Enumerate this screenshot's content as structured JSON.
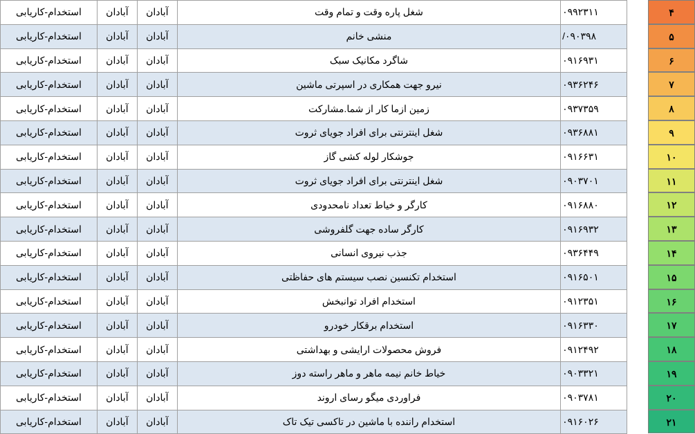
{
  "index_colors": [
    "#f07a3c",
    "#f28e42",
    "#f4a24a",
    "#f6b652",
    "#f8ca5a",
    "#fadc62",
    "#f4e464",
    "#dce666",
    "#c4e468",
    "#ace26a",
    "#94de6c",
    "#7cd86e",
    "#6ad270",
    "#58cc72",
    "#46c674",
    "#3ac076",
    "#32ba78",
    "#2ab47a"
  ],
  "rows": [
    {
      "n": "۴",
      "phone": "۰۹۹۲۳۱۱",
      "title": "شغل پاره وقت و تمام وقت",
      "city1": "آبادان",
      "city2": "آبادان",
      "cat": "استخدام-کاریابی"
    },
    {
      "n": "۵",
      "phone": "۰۹۰۳۹۸/",
      "title": "منشی خانم",
      "city1": "آبادان",
      "city2": "آبادان",
      "cat": "استخدام-کاریابی"
    },
    {
      "n": "۶",
      "phone": "۰۹۱۶۹۳۱",
      "title": "شاگرد مکانیک سبک",
      "city1": "آبادان",
      "city2": "آبادان",
      "cat": "استخدام-کاریابی"
    },
    {
      "n": "۷",
      "phone": "۰۹۳۶۲۴۶",
      "title": "نیرو جهت همکاری در اسپرتی ماشین",
      "city1": "آبادان",
      "city2": "آبادان",
      "cat": "استخدام-کاریابی"
    },
    {
      "n": "۸",
      "phone": "۰۹۳۷۳۵۹",
      "title": "زمین ازما کار از شما.مشارکت",
      "city1": "آبادان",
      "city2": "آبادان",
      "cat": "استخدام-کاریابی"
    },
    {
      "n": "۹",
      "phone": "۰۹۳۶۸۸۱",
      "title": "شغل اینترنتی برای افراد جویای ثروت",
      "city1": "آبادان",
      "city2": "آبادان",
      "cat": "استخدام-کاریابی"
    },
    {
      "n": "۱۰",
      "phone": "۰۹۱۶۶۳۱",
      "title": "جوشکار لوله کشی گاز",
      "city1": "آبادان",
      "city2": "آبادان",
      "cat": "استخدام-کاریابی"
    },
    {
      "n": "۱۱",
      "phone": "۰۹۰۳۷۰۱",
      "title": "شغل اینترنتی برای افراد جویای ثروت",
      "city1": "آبادان",
      "city2": "آبادان",
      "cat": "استخدام-کاریابی"
    },
    {
      "n": "۱۲",
      "phone": "۰۹۱۶۸۸۰",
      "title": "کارگر و خیاط تعداد نامحدودی",
      "city1": "آبادان",
      "city2": "آبادان",
      "cat": "استخدام-کاریابی"
    },
    {
      "n": "۱۳",
      "phone": "۰۹۱۶۹۳۲",
      "title": "کارگر ساده جهت گلفروشی",
      "city1": "آبادان",
      "city2": "آبادان",
      "cat": "استخدام-کاریابی"
    },
    {
      "n": "۱۴",
      "phone": "۰۹۳۶۴۴۹",
      "title": "جذب نیروی انسانی",
      "city1": "آبادان",
      "city2": "آبادان",
      "cat": "استخدام-کاریابی"
    },
    {
      "n": "۱۵",
      "phone": "۰۹۱۶۵۰۱",
      "title": "استخدام تکنسین نصب سیستم های حفاظتی",
      "city1": "آبادان",
      "city2": "آبادان",
      "cat": "استخدام-کاریابی"
    },
    {
      "n": "۱۶",
      "phone": "۰۹۱۲۳۵۱",
      "title": "استخدام افراد توانبخش",
      "city1": "آبادان",
      "city2": "آبادان",
      "cat": "استخدام-کاریابی"
    },
    {
      "n": "۱۷",
      "phone": "۰۹۱۶۳۳۰",
      "title": "استخدام برقکار خودرو",
      "city1": "آبادان",
      "city2": "آبادان",
      "cat": "استخدام-کاریابی"
    },
    {
      "n": "۱۸",
      "phone": "۰۹۱۲۴۹۲",
      "title": "فروش محصولات ارایشی و بهداشتی",
      "city1": "آبادان",
      "city2": "آبادان",
      "cat": "استخدام-کاریابی"
    },
    {
      "n": "۱۹",
      "phone": "۰۹۰۳۳۲۱",
      "title": "خیاط خانم نیمه ماهر و ماهر راسته دوز",
      "city1": "آبادان",
      "city2": "آبادان",
      "cat": "استخدام-کاریابی"
    },
    {
      "n": "۲۰",
      "phone": "۰۹۰۳۷۸۱",
      "title": "فراوردی میگو رسای اروند",
      "city1": "آبادان",
      "city2": "آبادان",
      "cat": "استخدام-کاریابی"
    },
    {
      "n": "۲۱",
      "phone": "۰۹۱۶۰۲۶",
      "title": "استخدام راننده با ماشین در تاکسی تیک تاک",
      "city1": "آبادان",
      "city2": "آبادان",
      "cat": "استخدام-کاریابی"
    }
  ],
  "alt_background": "#dce6f1",
  "border_color": "#a0a0a0",
  "font_family": "Tahoma",
  "font_size_pt": 11
}
